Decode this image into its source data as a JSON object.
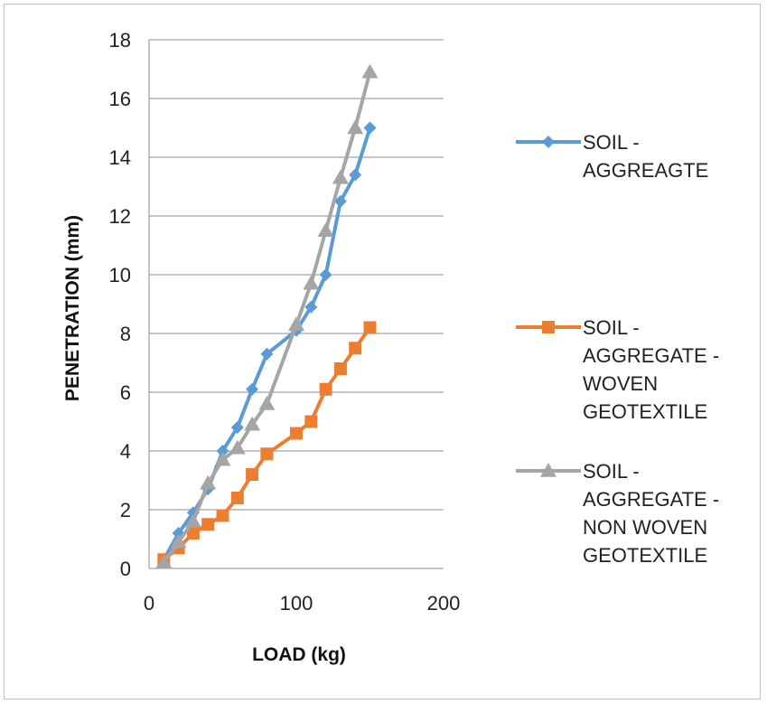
{
  "chart_data": {
    "type": "line",
    "title": "",
    "xlabel": "LOAD (kg)",
    "ylabel": "PENETRATION (mm)",
    "xlim": [
      0,
      200
    ],
    "ylim": [
      0,
      18
    ],
    "xticks": [
      0,
      100,
      200
    ],
    "yticks": [
      0,
      2,
      4,
      6,
      8,
      10,
      12,
      14,
      16,
      18
    ],
    "grid": "horizontal",
    "legend_position": "right",
    "series": [
      {
        "name": "SOIL - AGGREAGTE",
        "legend_lines": [
          "SOIL -",
          "AGGREAGTE"
        ],
        "color": "#5b9bd5",
        "marker": "diamond",
        "x": [
          10,
          20,
          30,
          40,
          50,
          60,
          70,
          80,
          100,
          110,
          120,
          130,
          140,
          150
        ],
        "y": [
          0.3,
          1.2,
          1.9,
          2.7,
          4.0,
          4.8,
          6.1,
          7.3,
          8.1,
          8.9,
          10.0,
          12.5,
          13.4,
          15.0
        ]
      },
      {
        "name": "SOIL - AGGREGATE - WOVEN GEOTEXTILE",
        "legend_lines": [
          "SOIL -",
          "AGGREGATE -",
          "WOVEN",
          "GEOTEXTILE"
        ],
        "color": "#ed7d31",
        "marker": "square",
        "x": [
          10,
          20,
          30,
          40,
          50,
          60,
          70,
          80,
          100,
          110,
          120,
          130,
          140,
          150
        ],
        "y": [
          0.3,
          0.7,
          1.2,
          1.5,
          1.8,
          2.4,
          3.2,
          3.9,
          4.6,
          5.0,
          6.1,
          6.8,
          7.5,
          8.2
        ]
      },
      {
        "name": "SOIL - AGGREGATE - NON WOVEN GEOTEXTILE",
        "legend_lines": [
          "SOIL -",
          "AGGREGATE -",
          "NON WOVEN",
          "GEOTEXTILE"
        ],
        "color": "#a5a5a5",
        "marker": "triangle",
        "x": [
          10,
          20,
          30,
          40,
          50,
          60,
          70,
          80,
          100,
          110,
          120,
          130,
          140,
          150
        ],
        "y": [
          0.2,
          0.9,
          1.6,
          2.9,
          3.7,
          4.1,
          4.9,
          5.6,
          8.3,
          9.7,
          11.5,
          13.3,
          15.0,
          16.9
        ]
      }
    ]
  }
}
